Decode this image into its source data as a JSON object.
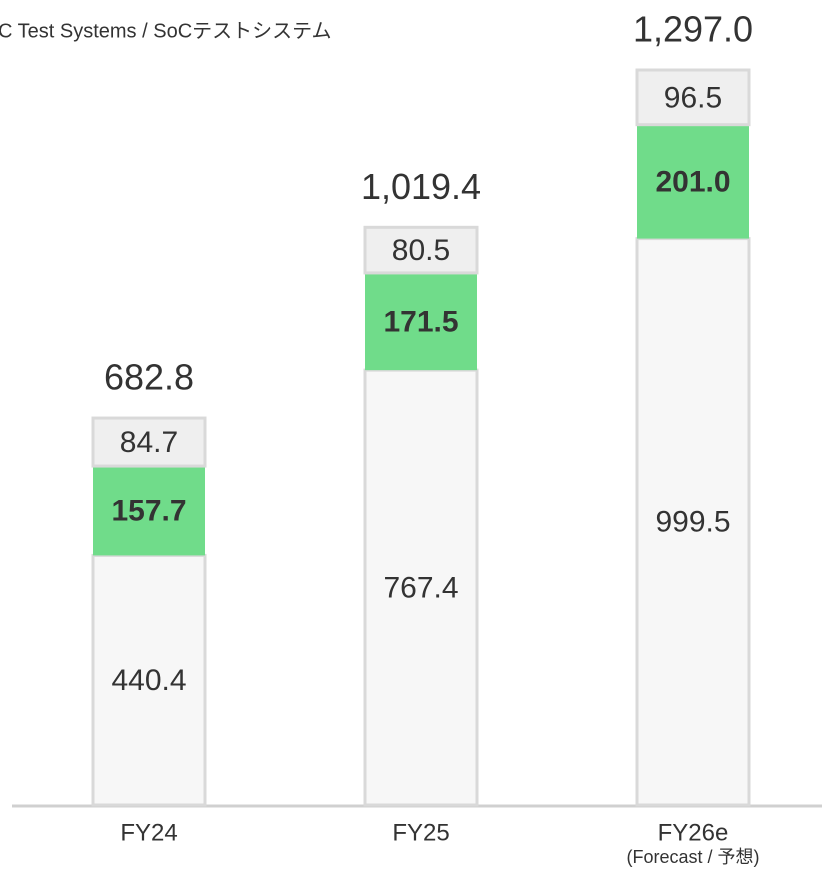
{
  "chart_data": {
    "type": "stacked-bar",
    "title": "C Test Systems / SoCテストシステム",
    "categories": [
      "FY24",
      "FY25",
      "FY26e"
    ],
    "category_notes": [
      null,
      null,
      "(Forecast / 予想)"
    ],
    "series": [
      {
        "color": "#f7f7f7",
        "stroke": "#d9d9d9",
        "bold": false,
        "values": [
          440.4,
          767.4,
          999.5
        ]
      },
      {
        "color": "#70dc8a",
        "stroke": "none",
        "bold": true,
        "values": [
          157.7,
          171.5,
          201.0
        ],
        "value_labels": [
          "157.7",
          "171.5",
          "201.0"
        ]
      },
      {
        "color": "#efefef",
        "stroke": "#d9d9d9",
        "bold": false,
        "values": [
          84.7,
          80.5,
          96.5
        ]
      }
    ],
    "totals": [
      682.8,
      1019.4,
      1297.0
    ],
    "total_labels": [
      "682.8",
      "1,019.4",
      "1,297.0"
    ]
  }
}
